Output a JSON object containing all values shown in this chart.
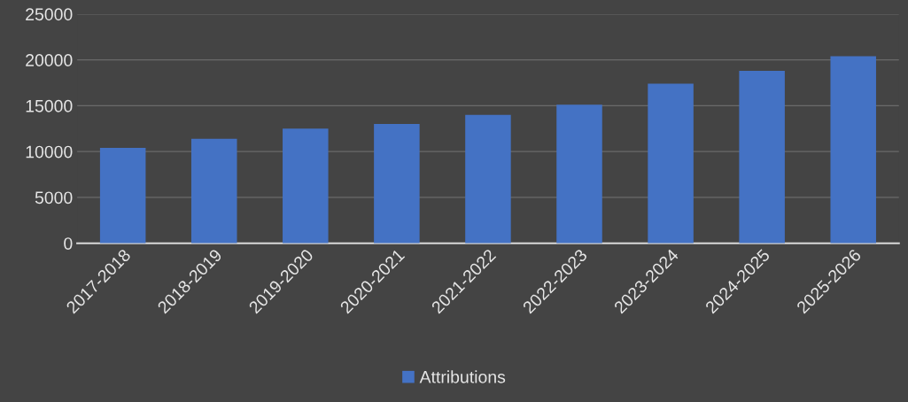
{
  "chart_data": {
    "type": "bar",
    "categories": [
      "2017-2018",
      "2018-2019",
      "2019-2020",
      "2020-2021",
      "2021-2022",
      "2022-2023",
      "2023-2024",
      "2024-2025",
      "2025-2026"
    ],
    "series": [
      {
        "name": "Attributions",
        "color": "#4472c4",
        "values": [
          10400,
          11400,
          12500,
          13000,
          14000,
          15100,
          17400,
          18800,
          20400
        ]
      }
    ],
    "ylim": [
      0,
      25000
    ],
    "yticks": [
      0,
      5000,
      10000,
      15000,
      20000,
      25000
    ],
    "grid": "y",
    "legend": "bottom"
  }
}
